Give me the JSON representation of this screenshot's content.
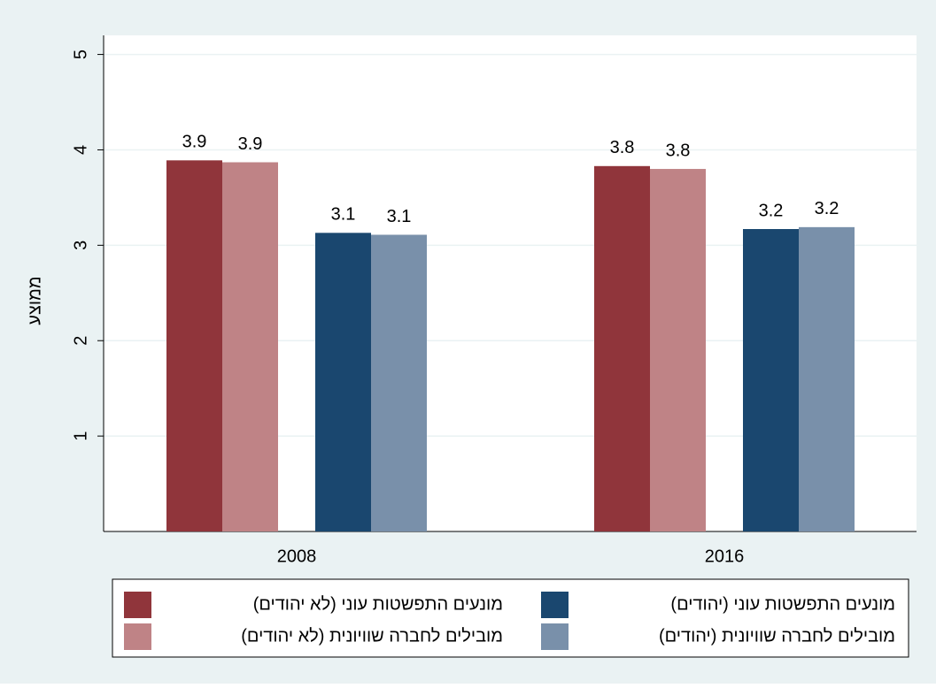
{
  "chart_data": {
    "type": "bar",
    "y_label": "ממוצע",
    "categories": [
      "2008",
      "2016"
    ],
    "series": [
      {
        "name": "מונעים התפשטות עוני (לא יהודים)",
        "color": "#90353b",
        "values": [
          3.89,
          3.83
        ],
        "value_labels": [
          "3.9",
          "3.8"
        ]
      },
      {
        "name": "מובילים לחברה שוויונית (לא יהודים)",
        "color": "#bf8386",
        "values": [
          3.87,
          3.8
        ],
        "value_labels": [
          "3.9",
          "3.8"
        ]
      },
      {
        "name": "מונעים התפשטות עוני (יהודים)",
        "color": "#1a476f",
        "values": [
          3.13,
          3.17
        ],
        "value_labels": [
          "3.1",
          "3.2"
        ]
      },
      {
        "name": "מובילים לחברה שוויונית (יהודים)",
        "color": "#7990aa",
        "values": [
          3.11,
          3.19
        ],
        "value_labels": [
          "3.1",
          "3.2"
        ]
      }
    ],
    "ylim": [
      0,
      5.2
    ],
    "yticks": [
      1,
      2,
      3,
      4,
      5
    ],
    "grid": true,
    "legend": "bottom"
  }
}
